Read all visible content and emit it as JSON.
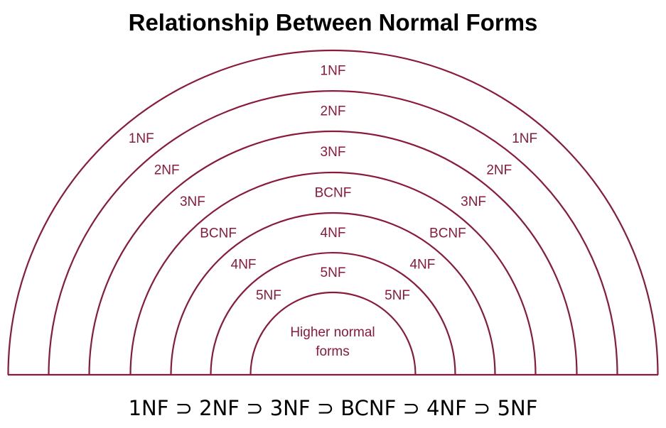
{
  "title": "Relationship Between Normal Forms",
  "accent_color": "#8b1a3a",
  "rings": [
    {
      "name": "1NF",
      "top_label": "1NF",
      "left_label": "1NF",
      "right_label": "1NF"
    },
    {
      "name": "2NF",
      "top_label": "2NF",
      "left_label": "2NF",
      "right_label": "2NF"
    },
    {
      "name": "3NF",
      "top_label": "3NF",
      "left_label": "3NF",
      "right_label": "3NF"
    },
    {
      "name": "BCNF",
      "top_label": "BCNF",
      "left_label": "BCNF",
      "right_label": "BCNF"
    },
    {
      "name": "4NF",
      "top_label": "4NF",
      "left_label": "4NF",
      "right_label": "4NF"
    },
    {
      "name": "5NF",
      "top_label": "5NF",
      "left_label": "5NF",
      "right_label": "5NF"
    }
  ],
  "core": {
    "line1": "Higher normal",
    "line2": "forms"
  },
  "formula": "1NF ⊃ 2NF ⊃ 3NF ⊃ BCNF ⊃ 4NF ⊃ 5NF"
}
